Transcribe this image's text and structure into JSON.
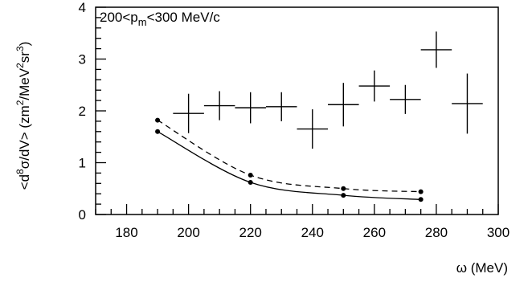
{
  "chart_data": {
    "type": "scatter",
    "title": "",
    "annotation": {
      "prefix": "200<p",
      "subscript": "m",
      "suffix": "<300 MeV/c"
    },
    "xlabel": "ω (MeV)",
    "ylabel": {
      "part1": "<d",
      "sup1": "8",
      "part2": "σ/dV> (zm",
      "sup2": "2",
      "part3": "/MeV",
      "sup3": "2",
      "part4": "sr",
      "sup4": "3",
      "part5": ")"
    },
    "xlim": [
      170,
      300
    ],
    "ylim": [
      0,
      4
    ],
    "xticks": [
      180,
      200,
      220,
      240,
      260,
      280,
      300
    ],
    "yticks": [
      0,
      1,
      2,
      3,
      4
    ],
    "grid": false,
    "series": [
      {
        "style": "error-crosses",
        "points": [
          {
            "x": 200,
            "y": 1.95,
            "xerr": 5,
            "yerr": 0.38
          },
          {
            "x": 210,
            "y": 2.1,
            "xerr": 5,
            "yerr": 0.28
          },
          {
            "x": 220,
            "y": 2.06,
            "xerr": 5,
            "yerr": 0.3
          },
          {
            "x": 230,
            "y": 2.08,
            "xerr": 5,
            "yerr": 0.28
          },
          {
            "x": 240,
            "y": 1.65,
            "xerr": 5,
            "yerr": 0.38
          },
          {
            "x": 250,
            "y": 2.12,
            "xerr": 5,
            "yerr": 0.42
          },
          {
            "x": 260,
            "y": 2.48,
            "xerr": 5,
            "yerr": 0.3
          },
          {
            "x": 270,
            "y": 2.22,
            "xerr": 5,
            "yerr": 0.28
          },
          {
            "x": 280,
            "y": 3.18,
            "xerr": 5,
            "yerr": 0.35
          },
          {
            "x": 290,
            "y": 2.14,
            "xerr": 5,
            "yerr": 0.58
          }
        ]
      },
      {
        "style": "solid-line-dots",
        "x": [
          190,
          220,
          250,
          275
        ],
        "y": [
          1.6,
          0.62,
          0.37,
          0.29
        ]
      },
      {
        "style": "dashed-line-dots",
        "x": [
          190,
          220,
          250,
          275
        ],
        "y": [
          1.82,
          0.76,
          0.5,
          0.44
        ]
      }
    ]
  }
}
